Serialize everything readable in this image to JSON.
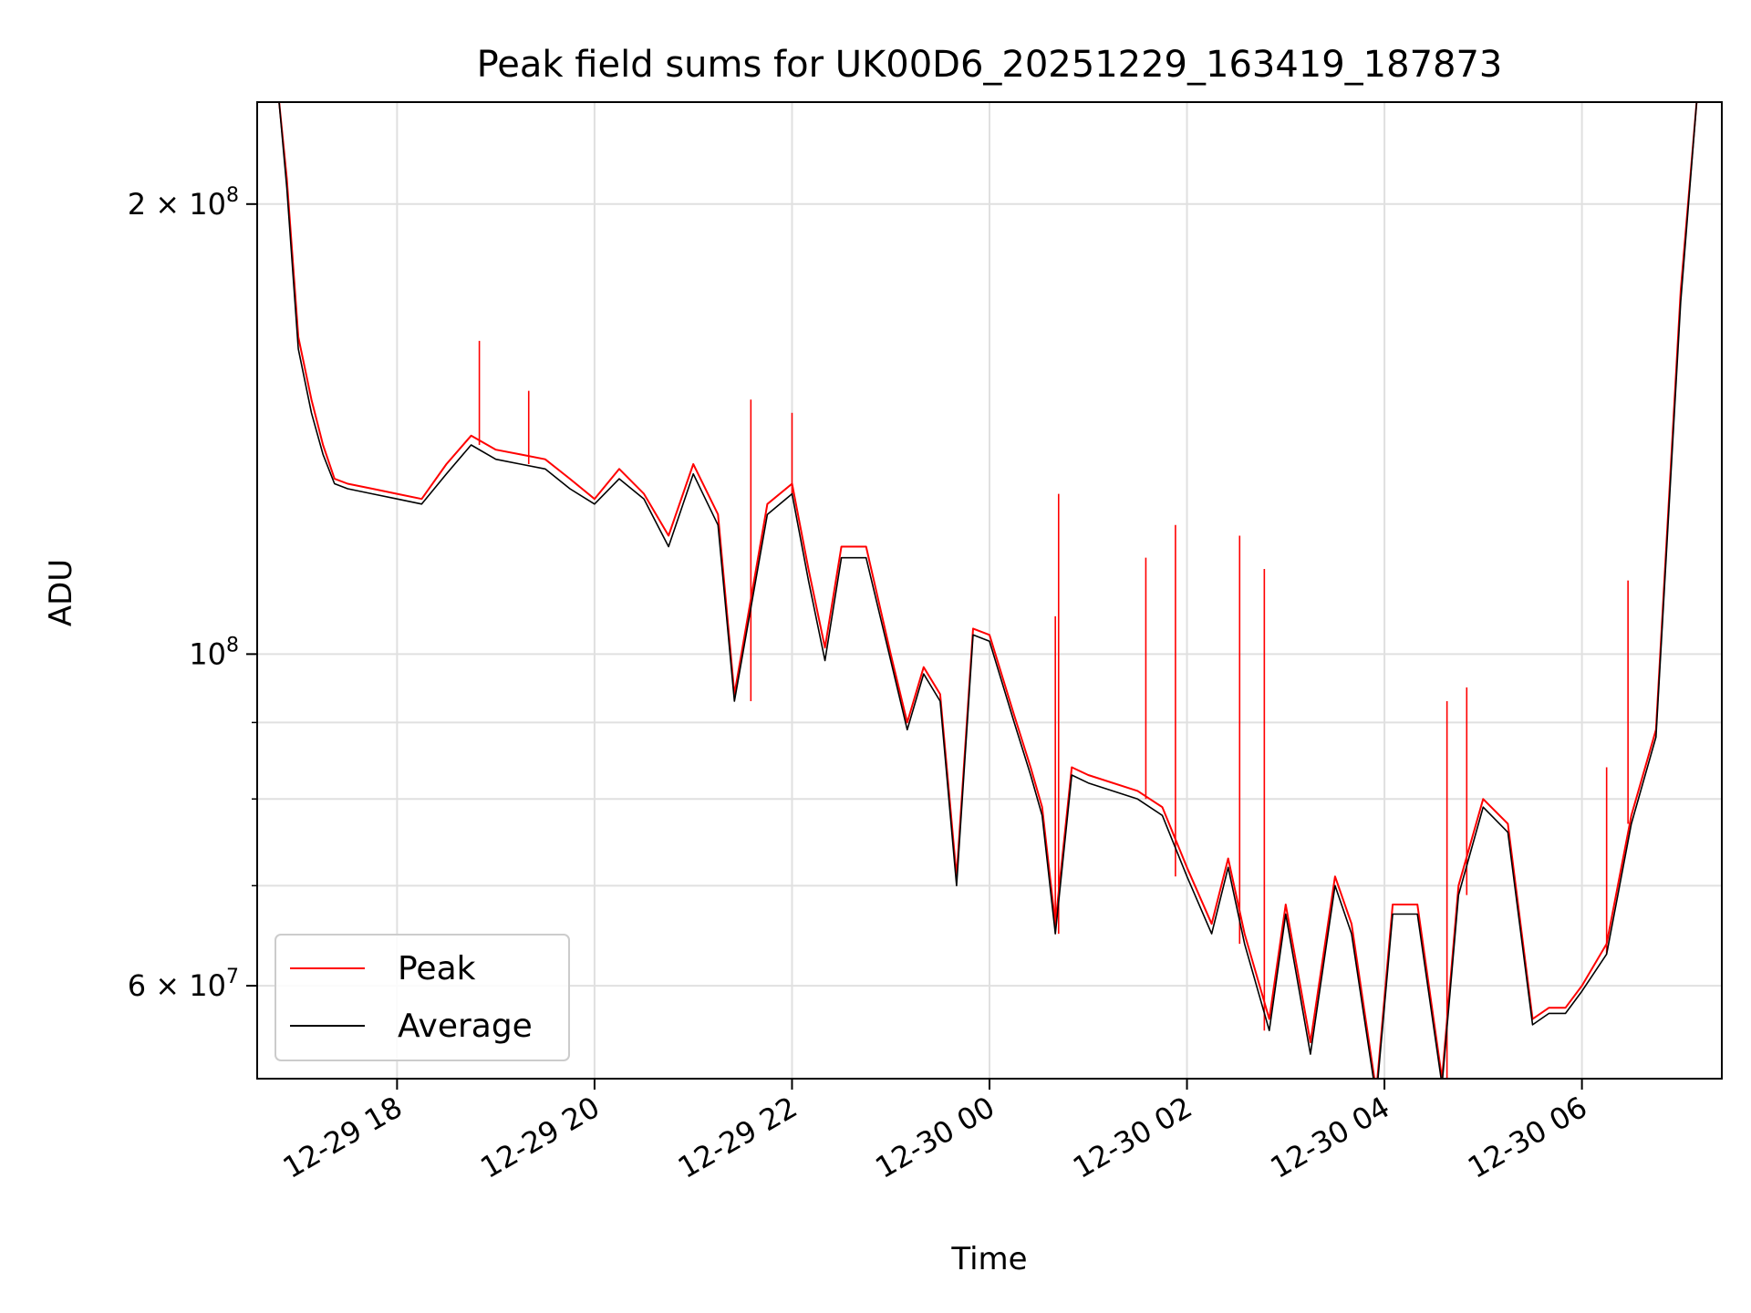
{
  "chart_data": {
    "type": "line",
    "title": "Peak field sums for UK00D6_20251229_163419_187873",
    "xlabel": "Time",
    "ylabel": "ADU",
    "yscale": "log",
    "ylim": [
      52000000,
      234000000
    ],
    "xlim": [
      "2025-12-29 16:35",
      "2025-12-30 07:25"
    ],
    "grid": true,
    "legend_position": "lower-left",
    "x_ticks": [
      {
        "t": "2025-12-29 18:00",
        "label": "12-29 18"
      },
      {
        "t": "2025-12-29 20:00",
        "label": "12-29 20"
      },
      {
        "t": "2025-12-29 22:00",
        "label": "12-29 22"
      },
      {
        "t": "2025-12-30 00:00",
        "label": "12-30 00"
      },
      {
        "t": "2025-12-30 02:00",
        "label": "12-30 02"
      },
      {
        "t": "2025-12-30 04:00",
        "label": "12-30 04"
      },
      {
        "t": "2025-12-30 06:00",
        "label": "12-30 06"
      }
    ],
    "y_ticks": [
      {
        "v": 200000000,
        "mantissa": "2",
        "exp": "8"
      },
      {
        "v": 100000000,
        "mantissa": "",
        "exp": "8"
      },
      {
        "v": 60000000,
        "mantissa": "6",
        "exp": "7"
      }
    ],
    "y_minor_gridlines": [
      70000000,
      80000000,
      90000000
    ],
    "series": [
      {
        "name": "Peak",
        "color": "#ff0000",
        "x": [
          "2025-12-29 16:48",
          "2025-12-29 16:53",
          "2025-12-29 17:00",
          "2025-12-29 17:08",
          "2025-12-29 17:15",
          "2025-12-29 17:22",
          "2025-12-29 17:30",
          "2025-12-29 17:45",
          "2025-12-29 18:00",
          "2025-12-29 18:15",
          "2025-12-29 18:30",
          "2025-12-29 18:45",
          "2025-12-29 19:00",
          "2025-12-29 19:15",
          "2025-12-29 19:30",
          "2025-12-29 19:45",
          "2025-12-29 20:00",
          "2025-12-29 20:15",
          "2025-12-29 20:30",
          "2025-12-29 20:45",
          "2025-12-29 21:00",
          "2025-12-29 21:15",
          "2025-12-29 21:25",
          "2025-12-29 21:45",
          "2025-12-29 22:00",
          "2025-12-29 22:10",
          "2025-12-29 22:20",
          "2025-12-29 22:30",
          "2025-12-29 22:45",
          "2025-12-29 23:00",
          "2025-12-29 23:10",
          "2025-12-29 23:20",
          "2025-12-29 23:30",
          "2025-12-29 23:40",
          "2025-12-29 23:50",
          "2025-12-30 00:00",
          "2025-12-30 00:15",
          "2025-12-30 00:25",
          "2025-12-30 00:32",
          "2025-12-30 00:40",
          "2025-12-30 00:50",
          "2025-12-30 01:00",
          "2025-12-30 01:30",
          "2025-12-30 01:45",
          "2025-12-30 02:00",
          "2025-12-30 02:15",
          "2025-12-30 02:25",
          "2025-12-30 02:35",
          "2025-12-30 02:50",
          "2025-12-30 03:00",
          "2025-12-30 03:15",
          "2025-12-30 03:30",
          "2025-12-30 03:40",
          "2025-12-30 03:55",
          "2025-12-30 04:05",
          "2025-12-30 04:20",
          "2025-12-30 04:35",
          "2025-12-30 04:45",
          "2025-12-30 05:00",
          "2025-12-30 05:15",
          "2025-12-30 05:30",
          "2025-12-30 05:40",
          "2025-12-30 05:50",
          "2025-12-30 06:00",
          "2025-12-30 06:15",
          "2025-12-30 06:30",
          "2025-12-30 06:45",
          "2025-12-30 07:00",
          "2025-12-30 07:10"
        ],
        "values": [
          236000000,
          208000000,
          163000000,
          148000000,
          138000000,
          131000000,
          130000000,
          129000000,
          128000000,
          127000000,
          134000000,
          140000000,
          137000000,
          136000000,
          135000000,
          131000000,
          127000000,
          133000000,
          128000000,
          120000000,
          134000000,
          124000000,
          94000000,
          126000000,
          130000000,
          114000000,
          101000000,
          118000000,
          118000000,
          100000000,
          90000000,
          98000000,
          94000000,
          71000000,
          104000000,
          103000000,
          91000000,
          84000000,
          79000000,
          66000000,
          84000000,
          83000000,
          81000000,
          79000000,
          72000000,
          66000000,
          73000000,
          65000000,
          57000000,
          68000000,
          55000000,
          71000000,
          66000000,
          51000000,
          68000000,
          68000000,
          52000000,
          70000000,
          80000000,
          77000000,
          57000000,
          58000000,
          58000000,
          60000000,
          64000000,
          78000000,
          89000000,
          175000000,
          236000000
        ]
      },
      {
        "name": "Average",
        "color": "#000000",
        "x": [
          "2025-12-29 16:48",
          "2025-12-29 16:53",
          "2025-12-29 17:00",
          "2025-12-29 17:08",
          "2025-12-29 17:15",
          "2025-12-29 17:22",
          "2025-12-29 17:30",
          "2025-12-29 17:45",
          "2025-12-29 18:00",
          "2025-12-29 18:15",
          "2025-12-29 18:30",
          "2025-12-29 18:45",
          "2025-12-29 19:00",
          "2025-12-29 19:15",
          "2025-12-29 19:30",
          "2025-12-29 19:45",
          "2025-12-29 20:00",
          "2025-12-29 20:15",
          "2025-12-29 20:30",
          "2025-12-29 20:45",
          "2025-12-29 21:00",
          "2025-12-29 21:15",
          "2025-12-29 21:25",
          "2025-12-29 21:45",
          "2025-12-29 22:00",
          "2025-12-29 22:10",
          "2025-12-29 22:20",
          "2025-12-29 22:30",
          "2025-12-29 22:45",
          "2025-12-29 23:00",
          "2025-12-29 23:10",
          "2025-12-29 23:20",
          "2025-12-29 23:30",
          "2025-12-29 23:40",
          "2025-12-29 23:50",
          "2025-12-30 00:00",
          "2025-12-30 00:15",
          "2025-12-30 00:25",
          "2025-12-30 00:32",
          "2025-12-30 00:40",
          "2025-12-30 00:50",
          "2025-12-30 01:00",
          "2025-12-30 01:30",
          "2025-12-30 01:45",
          "2025-12-30 02:00",
          "2025-12-30 02:15",
          "2025-12-30 02:25",
          "2025-12-30 02:35",
          "2025-12-30 02:50",
          "2025-12-30 03:00",
          "2025-12-30 03:15",
          "2025-12-30 03:30",
          "2025-12-30 03:40",
          "2025-12-30 03:55",
          "2025-12-30 04:05",
          "2025-12-30 04:20",
          "2025-12-30 04:35",
          "2025-12-30 04:45",
          "2025-12-30 05:00",
          "2025-12-30 05:15",
          "2025-12-30 05:30",
          "2025-12-30 05:40",
          "2025-12-30 05:50",
          "2025-12-30 06:00",
          "2025-12-30 06:15",
          "2025-12-30 06:30",
          "2025-12-30 06:45",
          "2025-12-30 07:00",
          "2025-12-30 07:10"
        ],
        "values": [
          236000000,
          205000000,
          160000000,
          145000000,
          136000000,
          130000000,
          129000000,
          128000000,
          127000000,
          126000000,
          132000000,
          138000000,
          135000000,
          134000000,
          133000000,
          129000000,
          126000000,
          131000000,
          127000000,
          118000000,
          132000000,
          122000000,
          93000000,
          124000000,
          128000000,
          112000000,
          99000000,
          116000000,
          116000000,
          99000000,
          89000000,
          97000000,
          93000000,
          70000000,
          103000000,
          102000000,
          90000000,
          83000000,
          78000000,
          65000000,
          83000000,
          82000000,
          80000000,
          78000000,
          71000000,
          65000000,
          72000000,
          64000000,
          56000000,
          67000000,
          54000000,
          70000000,
          65000000,
          50500000,
          67000000,
          67000000,
          51500000,
          69000000,
          79000000,
          76000000,
          56500000,
          57500000,
          57500000,
          59500000,
          63000000,
          77000000,
          88000000,
          172000000,
          236000000
        ]
      }
    ],
    "peak_spikes": [
      {
        "t": "2025-12-29 18:50",
        "v": 162000000
      },
      {
        "t": "2025-12-29 19:20",
        "v": 150000000
      },
      {
        "t": "2025-12-29 21:35",
        "v": 148000000
      },
      {
        "t": "2025-12-29 22:00",
        "v": 145000000
      },
      {
        "t": "2025-12-30 00:40",
        "v": 106000000
      },
      {
        "t": "2025-12-30 00:42",
        "v": 128000000
      },
      {
        "t": "2025-12-30 01:35",
        "v": 116000000
      },
      {
        "t": "2025-12-30 01:53",
        "v": 122000000
      },
      {
        "t": "2025-12-30 02:32",
        "v": 120000000
      },
      {
        "t": "2025-12-30 02:47",
        "v": 114000000
      },
      {
        "t": "2025-12-30 04:38",
        "v": 93000000
      },
      {
        "t": "2025-12-30 04:50",
        "v": 95000000
      },
      {
        "t": "2025-12-30 06:15",
        "v": 84000000
      },
      {
        "t": "2025-12-30 06:28",
        "v": 112000000
      }
    ]
  }
}
